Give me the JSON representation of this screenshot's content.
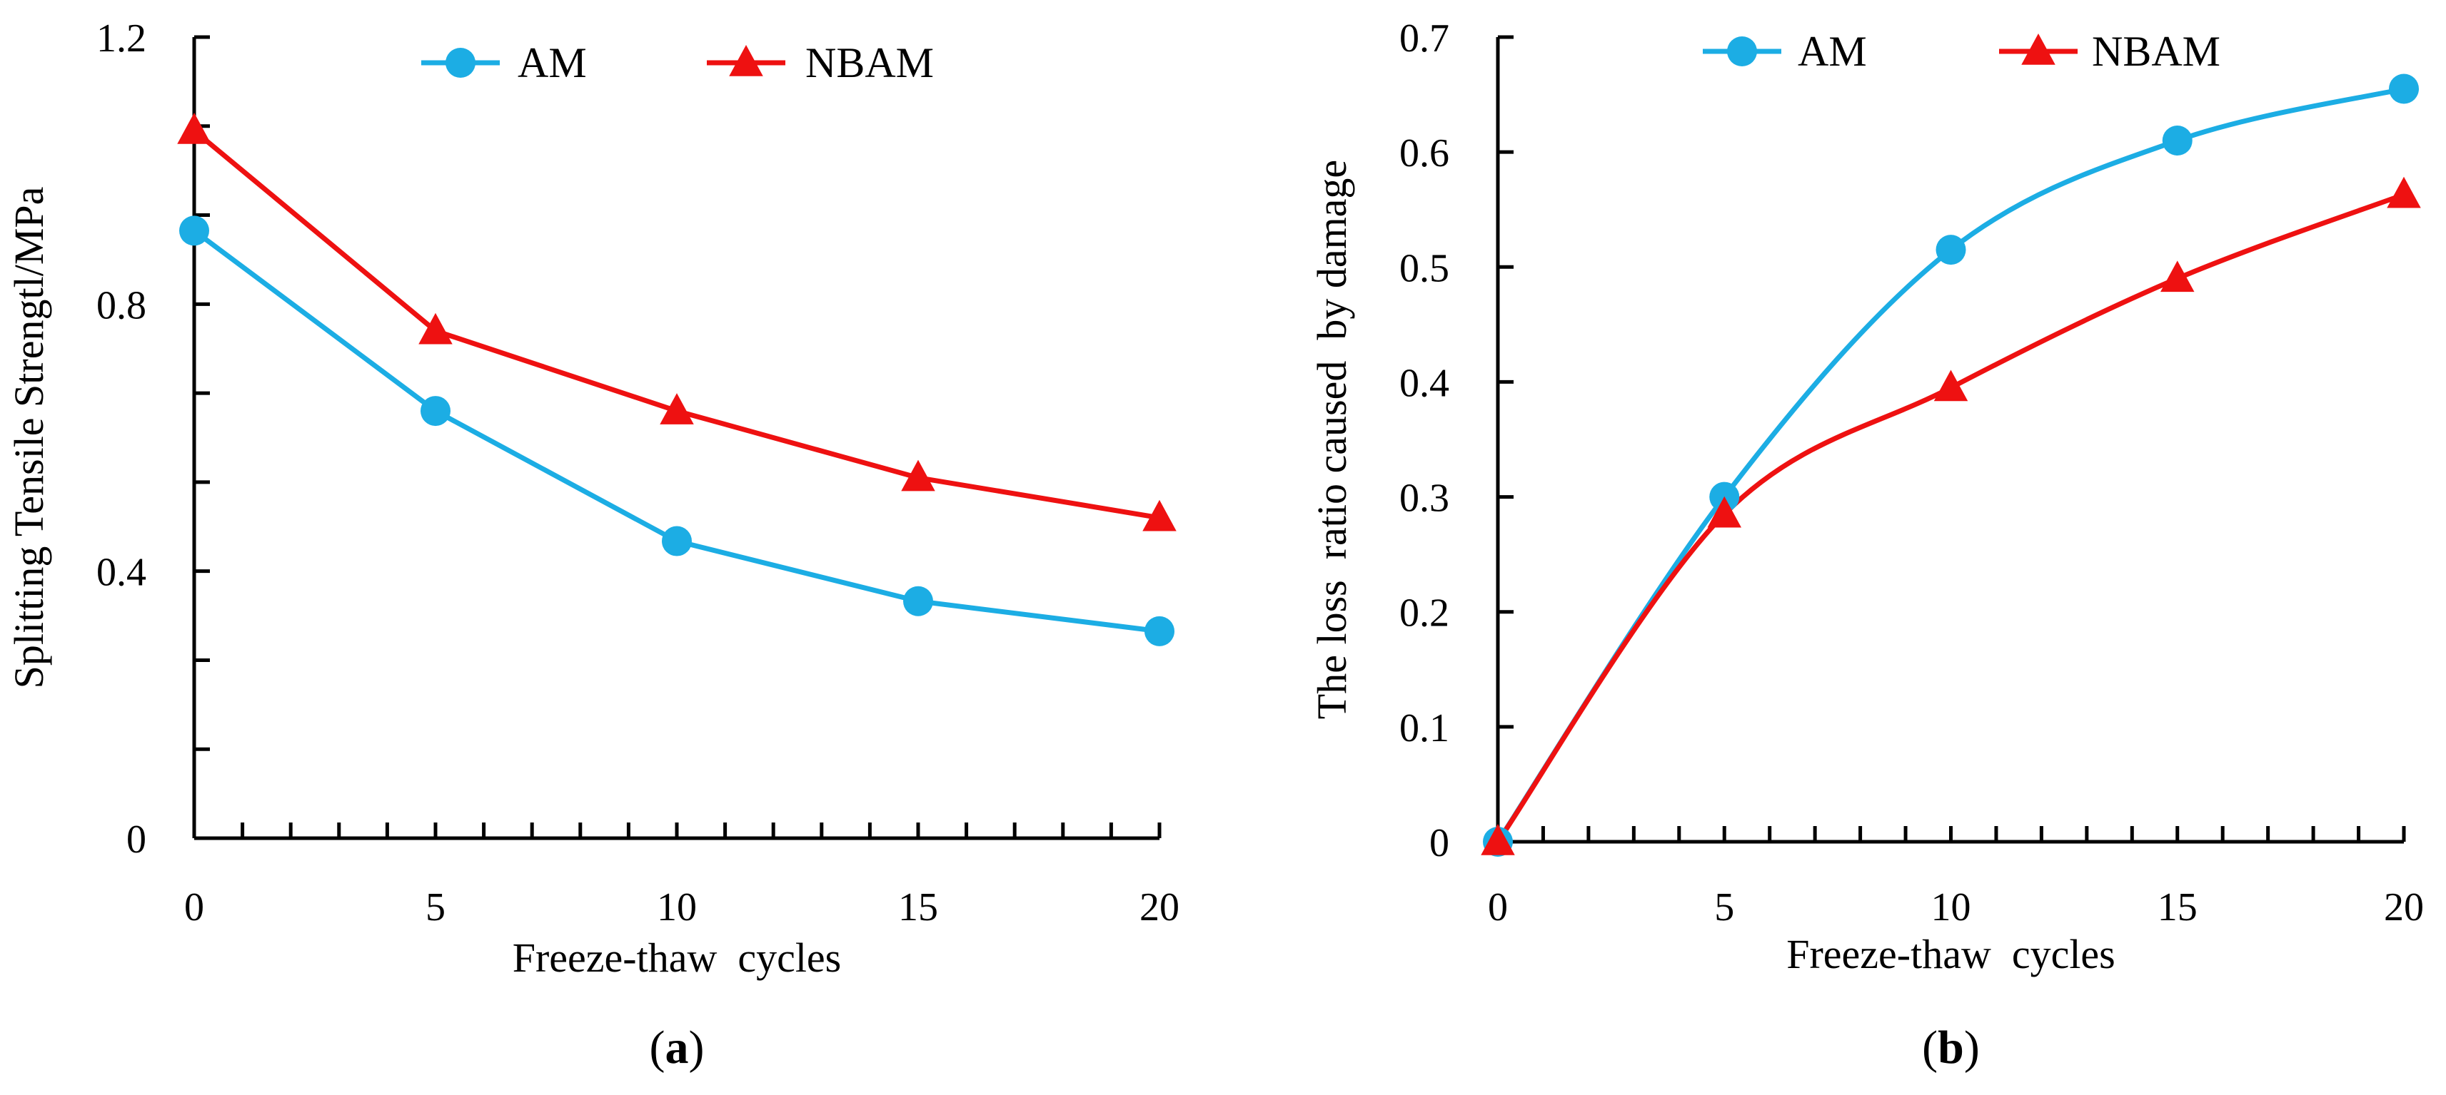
{
  "chart_data": [
    {
      "type": "line",
      "panel_label": "a",
      "xlabel": "Freeze-thaw  cycles",
      "ylabel": "Splitting Tensile Strengtl/MPa",
      "x": [
        0,
        5,
        10,
        15,
        20
      ],
      "xlim": [
        0,
        20
      ],
      "ylim": [
        0,
        1.2
      ],
      "x_ticks": [
        0,
        5,
        10,
        15,
        20
      ],
      "x_tick_labels": [
        "0",
        "5",
        "10",
        "15",
        "20"
      ],
      "y_ticks": [
        0,
        0.4,
        0.8,
        1.2
      ],
      "y_tick_labels": [
        "0",
        "0.4",
        "0.8",
        "1.2"
      ],
      "smooth": false,
      "legend_position": "top-center",
      "series": [
        {
          "name": "AM",
          "marker": "circle",
          "color": "#1CADE4",
          "values": [
            0.91,
            0.64,
            0.445,
            0.355,
            0.31
          ]
        },
        {
          "name": "NBAM",
          "marker": "triangle",
          "color": "#EE1111",
          "values": [
            1.06,
            0.76,
            0.64,
            0.54,
            0.48
          ]
        }
      ]
    },
    {
      "type": "line",
      "panel_label": "b",
      "xlabel": "Freeze-thaw  cycles",
      "ylabel": "The loss  ratio caused  by damage",
      "x": [
        0,
        5,
        10,
        15,
        20
      ],
      "xlim": [
        0,
        20
      ],
      "ylim": [
        0,
        0.7
      ],
      "x_ticks": [
        0,
        5,
        10,
        15,
        20
      ],
      "x_tick_labels": [
        "0",
        "5",
        "10",
        "15",
        "20"
      ],
      "y_ticks": [
        0,
        0.1,
        0.2,
        0.3,
        0.4,
        0.5,
        0.6,
        0.7
      ],
      "y_tick_labels": [
        "0",
        "0.1",
        "0.2",
        "0.3",
        "0.4",
        "0.5",
        "0.6",
        "0.7"
      ],
      "smooth": true,
      "legend_position": "top-center",
      "series": [
        {
          "name": "AM",
          "marker": "circle",
          "color": "#1CADE4",
          "values": [
            0,
            0.3,
            0.515,
            0.61,
            0.655
          ]
        },
        {
          "name": "NBAM",
          "marker": "triangle",
          "color": "#EE1111",
          "values": [
            0,
            0.285,
            0.395,
            0.49,
            0.563
          ]
        }
      ]
    }
  ]
}
